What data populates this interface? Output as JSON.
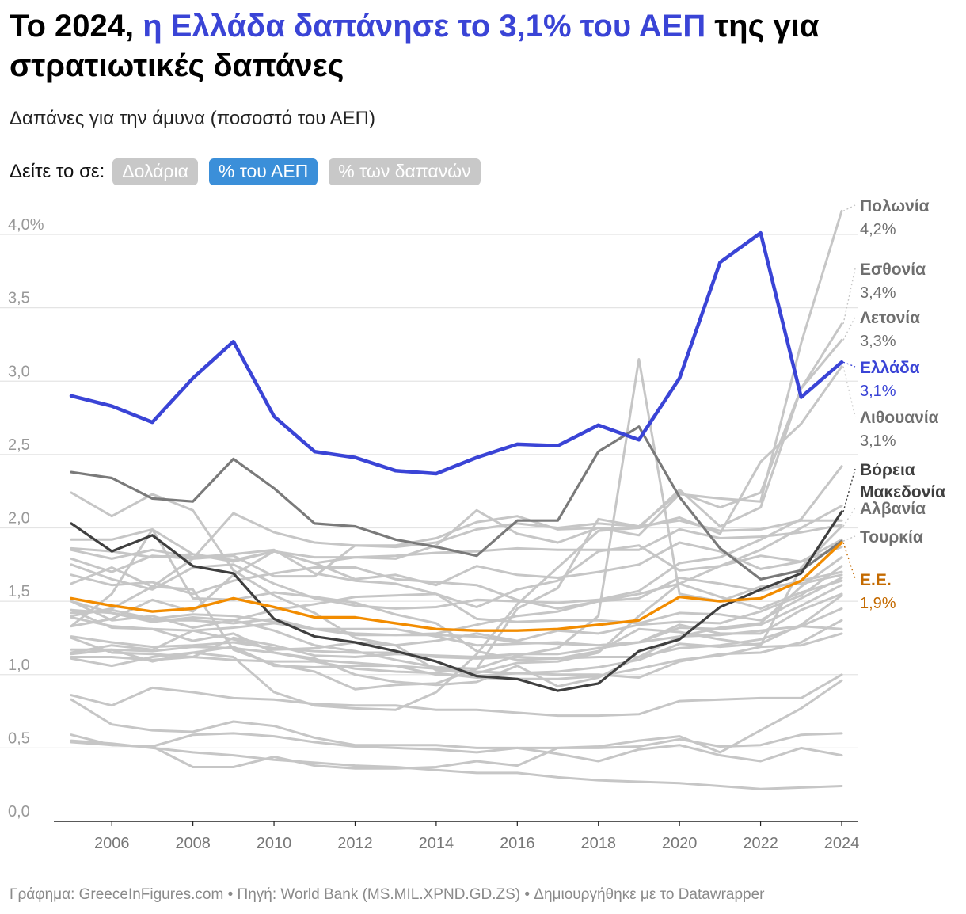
{
  "header": {
    "title_prefix": "Το 2024, ",
    "title_highlight": "η Ελλάδα δαπάνησε το 3,1% του ΑΕΠ",
    "title_suffix": " της για στρατιωτικές δαπάνες",
    "subtitle": "Δαπάνες για την άμυνα (ποσοστό του ΑΕΠ)"
  },
  "toggle": {
    "label": "Δείτε το σε:",
    "options": [
      "Δολάρια",
      "% του ΑΕΠ",
      "% των δαπανών"
    ],
    "selected": "% του ΑΕΠ"
  },
  "footer": {
    "text": "Γράφημα: GreeceInFigures.com • Πηγή: World Bank (MS.MIL.XPND.GD.ZS) • Δημιουργήθηκε με το Datawrapper"
  },
  "colors": {
    "greece": "#3a44d6",
    "eu": "#f28c00",
    "eu_label": "#c46a00",
    "north_macedonia": "#3f3f3f",
    "turkey": "#7a7a7a",
    "context": "#c6c6c6",
    "label_gray": "#6f6f6f",
    "axis": "#999999",
    "grid": "#e4e4e4"
  },
  "chart_data": {
    "type": "line",
    "ylabel": "Δαπάνες για την άμυνα (ποσοστό του ΑΕΠ)",
    "ylim": [
      0,
      4.2
    ],
    "yticks": [
      0,
      0.5,
      1.0,
      1.5,
      2.0,
      2.5,
      3.0,
      3.5,
      4.0
    ],
    "ytick_labels": [
      "0,0",
      "0,5",
      "1,0",
      "1,5",
      "2,0",
      "2,5",
      "3,0",
      "3,5",
      "4,0%"
    ],
    "xlim": [
      2005,
      2024
    ],
    "xticks": [
      2006,
      2008,
      2010,
      2012,
      2014,
      2016,
      2018,
      2020,
      2022,
      2024
    ],
    "x": [
      2005,
      2006,
      2007,
      2008,
      2009,
      2010,
      2011,
      2012,
      2013,
      2014,
      2015,
      2016,
      2017,
      2018,
      2019,
      2020,
      2021,
      2022,
      2023,
      2024
    ],
    "highlighted_series": [
      {
        "key": "turkey",
        "name": "Τουρκία",
        "value_label": "",
        "label_color": "#6f6f6f",
        "values": [
          2.38,
          2.34,
          2.2,
          2.18,
          2.47,
          2.27,
          2.03,
          2.01,
          1.92,
          1.87,
          1.81,
          2.05,
          2.05,
          2.52,
          2.69,
          2.21,
          1.86,
          1.65,
          1.71,
          1.91
        ]
      },
      {
        "key": "north_macedonia",
        "name": "Βόρεια Μακεδονία",
        "value_label": "",
        "label_color": "#3f3f3f",
        "values": [
          2.03,
          1.84,
          1.95,
          1.74,
          1.69,
          1.38,
          1.26,
          1.22,
          1.16,
          1.09,
          0.99,
          0.97,
          0.89,
          0.94,
          1.16,
          1.24,
          1.46,
          1.58,
          1.69,
          2.11
        ]
      },
      {
        "key": "eu",
        "name": "Ε.Ε.",
        "value_label": "1,9%",
        "label_color": "#c46a00",
        "values": [
          1.52,
          1.47,
          1.43,
          1.45,
          1.52,
          1.46,
          1.39,
          1.39,
          1.35,
          1.31,
          1.3,
          1.3,
          1.31,
          1.34,
          1.37,
          1.53,
          1.5,
          1.52,
          1.64,
          1.9
        ]
      },
      {
        "key": "greece",
        "name": "Ελλάδα",
        "value_label": "3,1%",
        "label_color": "#3a44d6",
        "values": [
          2.9,
          2.83,
          2.72,
          3.02,
          3.27,
          2.76,
          2.52,
          2.48,
          2.39,
          2.37,
          2.48,
          2.57,
          2.56,
          2.7,
          2.6,
          3.02,
          3.81,
          4.01,
          2.89,
          3.13
        ]
      }
    ],
    "labeled_context_series": [
      {
        "key": "poland",
        "name": "Πολωνία",
        "value_label": "4,2%",
        "values": [
          1.86,
          1.84,
          1.8,
          1.82,
          1.78,
          1.84,
          1.76,
          1.8,
          1.79,
          1.88,
          2.12,
          1.96,
          1.9,
          2.0,
          1.95,
          2.23,
          2.2,
          2.18,
          3.26,
          4.16
        ]
      },
      {
        "key": "estonia",
        "name": "Εσθονία",
        "value_label": "3,4%",
        "values": [
          1.4,
          1.45,
          1.6,
          1.79,
          1.81,
          1.67,
          1.67,
          1.88,
          1.88,
          1.93,
          2.04,
          2.08,
          1.99,
          2.0,
          2.0,
          2.26,
          2.01,
          2.14,
          2.95,
          3.39
        ]
      },
      {
        "key": "latvia",
        "name": "Λετονία",
        "value_label": "3,3%",
        "values": [
          1.62,
          1.73,
          1.6,
          1.58,
          1.17,
          1.07,
          1.02,
          0.9,
          0.93,
          0.94,
          1.04,
          1.45,
          1.59,
          2.06,
          2.01,
          2.24,
          2.14,
          2.24,
          2.95,
          3.28
        ]
      },
      {
        "key": "lithuania",
        "name": "Λιθουανία",
        "value_label": "3,1%",
        "values": [
          1.14,
          1.17,
          1.09,
          1.15,
          1.12,
          0.88,
          0.79,
          0.77,
          0.76,
          0.88,
          1.14,
          1.48,
          1.73,
          1.98,
          2.0,
          2.07,
          1.96,
          2.45,
          2.71,
          3.1
        ]
      },
      {
        "key": "albania",
        "name": "Αλβανία",
        "value_label": "",
        "values": [
          1.33,
          1.55,
          1.99,
          1.52,
          1.51,
          1.56,
          1.53,
          1.49,
          1.41,
          1.35,
          1.16,
          1.1,
          1.11,
          1.16,
          1.31,
          1.29,
          1.24,
          1.2,
          1.73,
          2.01
        ]
      }
    ],
    "context_series": [
      {
        "values": [
          1.75,
          1.65,
          1.58,
          1.73,
          1.75,
          1.62,
          1.52,
          1.47,
          1.45,
          1.46,
          1.51,
          1.5,
          1.49,
          1.51,
          1.57,
          1.76,
          1.8,
          1.92,
          2.06,
          2.42
        ]
      },
      {
        "values": [
          2.24,
          2.08,
          2.23,
          2.12,
          1.71,
          1.54,
          1.42,
          1.25,
          1.2,
          1.03,
          1.01,
          1.08,
          1.09,
          1.15,
          1.4,
          1.62,
          1.74,
          1.85,
          2.0,
          2.15
        ]
      },
      {
        "values": [
          1.79,
          1.7,
          1.81,
          1.79,
          2.1,
          1.97,
          1.9,
          1.88,
          1.87,
          1.9,
          1.99,
          2.03,
          2.0,
          2.03,
          2.01,
          2.05,
          1.98,
          1.99,
          2.05,
          2.05
        ]
      },
      {
        "values": [
          1.92,
          1.92,
          1.99,
          1.82,
          1.77,
          1.84,
          1.8,
          1.8,
          1.81,
          1.83,
          1.84,
          1.86,
          1.85,
          1.85,
          1.85,
          1.99,
          1.93,
          1.94,
          1.97,
          2.02
        ]
      },
      {
        "values": [
          1.33,
          1.38,
          1.51,
          1.43,
          1.68,
          1.84,
          1.76,
          1.65,
          1.68,
          1.61,
          1.74,
          1.68,
          1.66,
          1.7,
          1.75,
          1.9,
          1.84,
          1.72,
          1.77,
          1.87
        ]
      },
      {
        "values": [
          1.68,
          1.61,
          1.63,
          1.55,
          1.64,
          1.69,
          1.73,
          1.73,
          1.65,
          1.63,
          1.61,
          1.51,
          1.45,
          1.5,
          1.52,
          1.66,
          1.62,
          1.57,
          1.64,
          1.7
        ]
      },
      {
        "values": [
          1.44,
          1.42,
          1.37,
          1.37,
          1.35,
          1.38,
          1.31,
          1.28,
          1.27,
          1.28,
          1.34,
          1.4,
          1.43,
          1.5,
          1.55,
          1.62,
          1.53,
          1.45,
          1.56,
          1.64
        ]
      },
      {
        "values": [
          1.5,
          1.37,
          1.4,
          1.32,
          1.37,
          1.44,
          1.48,
          1.53,
          1.54,
          1.55,
          1.38,
          1.36,
          1.37,
          1.37,
          1.35,
          1.42,
          1.41,
          1.37,
          1.52,
          1.66
        ]
      },
      {
        "values": [
          1.25,
          1.15,
          1.14,
          1.12,
          1.25,
          1.2,
          1.13,
          1.12,
          1.14,
          1.13,
          1.12,
          1.14,
          1.14,
          1.18,
          1.22,
          1.32,
          1.31,
          1.34,
          1.47,
          1.61
        ]
      },
      {
        "values": [
          1.39,
          1.33,
          1.31,
          1.3,
          1.32,
          1.35,
          1.31,
          1.31,
          1.31,
          1.26,
          1.2,
          1.21,
          1.22,
          1.2,
          1.22,
          1.34,
          1.28,
          1.28,
          1.44,
          1.55
        ]
      },
      {
        "values": [
          1.11,
          1.06,
          1.12,
          1.15,
          1.19,
          1.06,
          1.05,
          1.06,
          1.06,
          1.0,
          0.99,
          1.01,
          1.02,
          1.05,
          1.1,
          1.21,
          1.19,
          1.21,
          1.34,
          1.54
        ]
      },
      {
        "values": [
          1.26,
          1.22,
          1.19,
          1.2,
          1.22,
          1.18,
          1.16,
          1.15,
          1.15,
          1.12,
          1.11,
          1.12,
          1.11,
          1.12,
          1.12,
          1.18,
          1.2,
          1.24,
          1.33,
          1.45
        ]
      },
      {
        "values": [
          1.17,
          1.17,
          1.16,
          1.19,
          1.18,
          1.15,
          1.1,
          1.08,
          1.06,
          1.04,
          1.02,
          1.01,
          1.0,
          1.0,
          0.98,
          1.09,
          1.14,
          1.15,
          1.22,
          1.37
        ]
      },
      {
        "values": [
          1.42,
          1.44,
          1.38,
          1.41,
          1.4,
          1.36,
          1.31,
          1.27,
          1.27,
          1.27,
          1.26,
          1.22,
          1.21,
          1.2,
          1.22,
          1.26,
          1.27,
          1.3,
          1.33,
          1.31
        ]
      },
      {
        "values": [
          1.12,
          1.12,
          1.1,
          1.12,
          1.1,
          1.09,
          1.09,
          1.04,
          1.02,
          1.01,
          0.98,
          0.97,
          0.97,
          0.99,
          1.04,
          1.1,
          1.13,
          1.19,
          1.2,
          1.28
        ]
      },
      {
        "values": [
          0.86,
          0.79,
          0.91,
          0.88,
          0.84,
          0.83,
          0.8,
          0.79,
          0.79,
          0.76,
          0.76,
          0.74,
          0.72,
          0.72,
          0.73,
          0.82,
          0.83,
          0.84,
          0.84,
          1.0
        ]
      },
      {
        "values": [
          0.83,
          0.66,
          0.62,
          0.61,
          0.68,
          0.65,
          0.57,
          0.52,
          0.52,
          0.52,
          0.5,
          0.5,
          0.5,
          0.51,
          0.55,
          0.58,
          0.47,
          0.62,
          0.77,
          0.96
        ]
      },
      {
        "values": [
          0.59,
          0.52,
          0.51,
          0.59,
          0.6,
          0.58,
          0.54,
          0.51,
          0.5,
          0.49,
          0.47,
          0.5,
          0.46,
          0.41,
          0.49,
          0.52,
          0.45,
          0.41,
          0.5,
          0.45
        ]
      },
      {
        "values": [
          0.54,
          0.52,
          0.51,
          0.37,
          0.37,
          0.44,
          0.38,
          0.36,
          0.36,
          0.37,
          0.41,
          0.38,
          0.5,
          0.5,
          0.51,
          0.56,
          0.51,
          0.52,
          0.59,
          0.6
        ]
      },
      {
        "values": [
          0.55,
          0.53,
          0.5,
          0.47,
          0.45,
          0.42,
          0.4,
          0.38,
          0.37,
          0.35,
          0.33,
          0.33,
          0.3,
          0.28,
          0.27,
          0.26,
          0.24,
          0.22,
          0.23,
          0.24
        ]
      },
      {
        "values": [
          1.85,
          1.79,
          1.85,
          1.8,
          1.82,
          1.85,
          1.69,
          1.64,
          1.62,
          1.55,
          1.46,
          1.58,
          1.64,
          1.84,
          1.88,
          1.71,
          1.74,
          1.81,
          1.77,
          1.92
        ]
      },
      {
        "values": [
          1.5,
          1.42,
          1.36,
          1.39,
          1.37,
          1.3,
          1.2,
          1.16,
          1.1,
          1.05,
          1.04,
          1.13,
          1.18,
          1.4,
          3.15,
          1.55,
          1.5,
          1.6,
          1.62,
          1.68
        ]
      },
      {
        "values": [
          1.44,
          1.32,
          1.31,
          1.23,
          1.28,
          1.15,
          1.11,
          1.0,
          0.95,
          0.93,
          0.95,
          1.06,
          0.92,
          0.98,
          1.12,
          1.26,
          1.32,
          1.35,
          1.6,
          1.8
        ]
      },
      {
        "values": [
          1.15,
          1.2,
          1.17,
          1.3,
          1.24,
          1.17,
          1.18,
          1.22,
          1.2,
          1.23,
          1.28,
          1.23,
          1.3,
          1.28,
          1.34,
          1.36,
          1.35,
          1.43,
          1.54,
          1.74
        ]
      }
    ],
    "end_labels": [
      {
        "name": "Πολωνία",
        "value_label": "4,2%",
        "color": "#6f6f6f"
      },
      {
        "name": "Εσθονία",
        "value_label": "3,4%",
        "color": "#6f6f6f"
      },
      {
        "name": "Λετονία",
        "value_label": "3,3%",
        "color": "#6f6f6f"
      },
      {
        "name": "Ελλάδα",
        "value_label": "3,1%",
        "color": "#3a44d6"
      },
      {
        "name": "Λιθουανία",
        "value_label": "3,1%",
        "color": "#6f6f6f"
      },
      {
        "name": "Βόρεια Μακεδονία",
        "value_label": "",
        "color": "#3f3f3f"
      },
      {
        "name": "Αλβανία",
        "value_label": "",
        "color": "#6f6f6f"
      },
      {
        "name": "Τουρκία",
        "value_label": "",
        "color": "#6f6f6f"
      },
      {
        "name": "Ε.Ε.",
        "value_label": "1,9%",
        "color": "#c46a00"
      }
    ]
  }
}
